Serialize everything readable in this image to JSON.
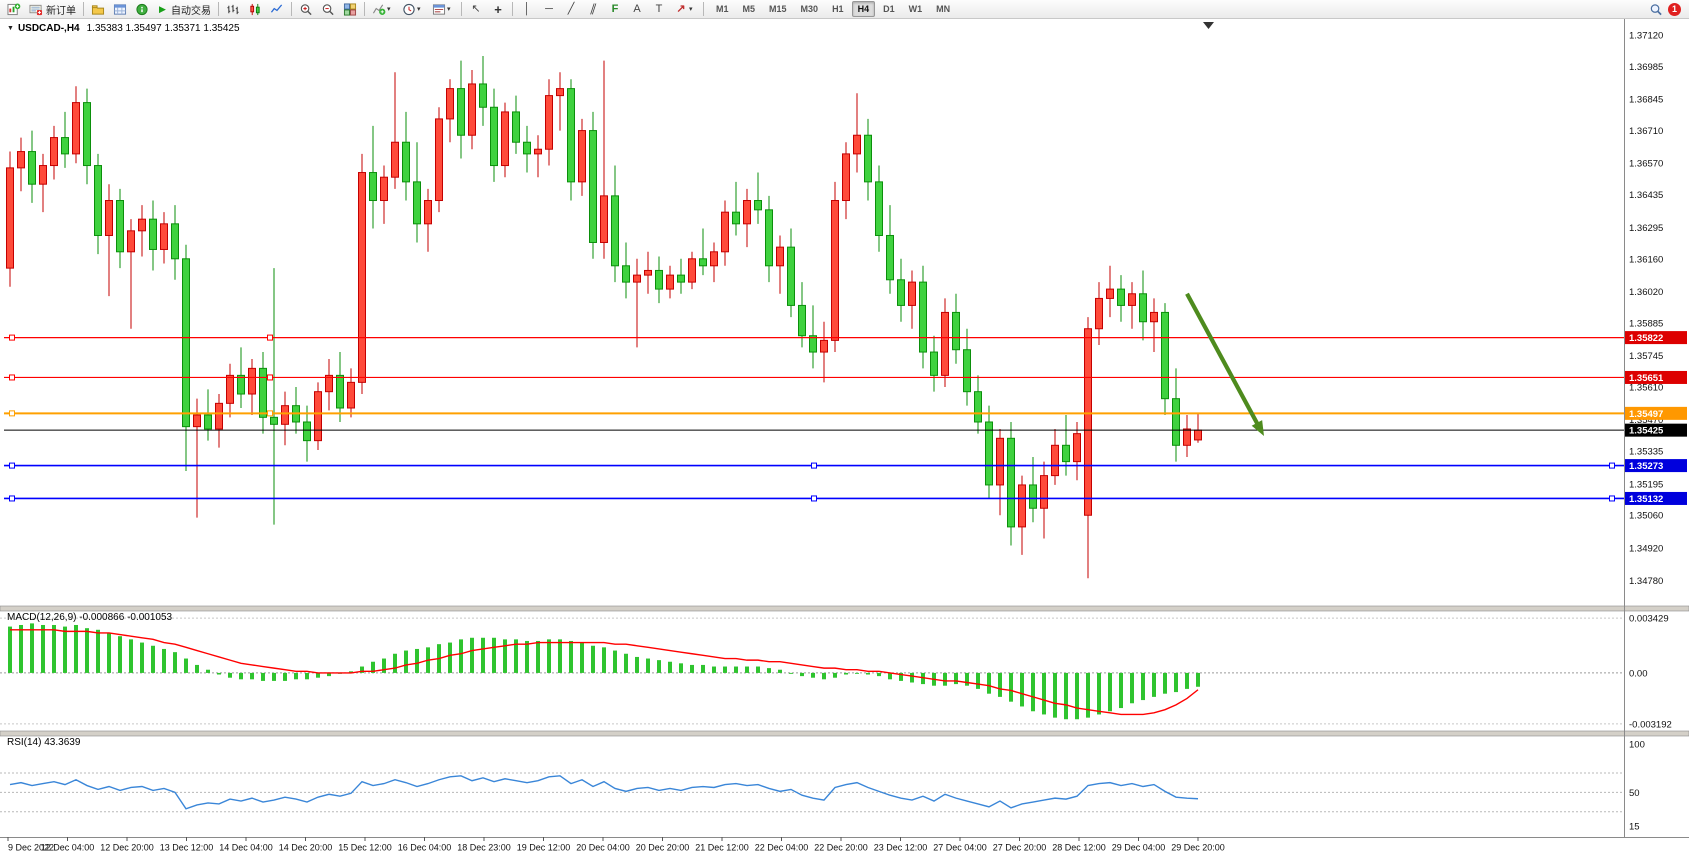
{
  "toolbar": {
    "new_order_label": "新订单",
    "auto_trading_label": "自动交易",
    "timeframes": [
      "M1",
      "M5",
      "M15",
      "M30",
      "H1",
      "H4",
      "D1",
      "W1",
      "MN"
    ],
    "active_timeframe": "H4",
    "notification_count": "1"
  },
  "icons": {
    "collapse": "▼",
    "play": "▶",
    "dropdown": "▾",
    "cursor": "↖",
    "crosshair": "+",
    "vertical_line": "│",
    "horizontal_line": "─",
    "trendline": "╱",
    "channel": "∥",
    "fibonacci": "F",
    "text_tool": "A",
    "label_tool": "T",
    "arrow_tool": "↗"
  },
  "chart": {
    "title": "USDCAD-,H4",
    "ohlc": "1.35383 1.35497 1.35371 1.35425"
  },
  "indicators": {
    "macd_name": "MACD(12,26,9)",
    "macd_values": "-0.000866 -0.001053",
    "rsi_name": "RSI(14)",
    "rsi_value": "43.3639"
  },
  "chart_data": {
    "type": "candlestick",
    "symbol": "USDCAD",
    "period": "H4",
    "ohlc_header": {
      "open": "1.35383",
      "high": "1.35497",
      "low": "1.35371",
      "close": "1.35425"
    },
    "colors": {
      "up_fill": "#ff4a3a",
      "up_stroke": "#c40000",
      "down_fill": "#3fd23f",
      "down_stroke": "#0b8f0b",
      "macd_bar": "#2fc42f",
      "macd_signal": "#ff0000",
      "rsi_line": "#3a86d8",
      "background": "#ffffff"
    },
    "price_axis": [
      "1.37120",
      "1.36985",
      "1.36845",
      "1.36710",
      "1.36570",
      "1.36435",
      "1.36295",
      "1.36160",
      "1.36020",
      "1.35885",
      "1.35745",
      "1.35610",
      "1.35470",
      "1.35335",
      "1.35195",
      "1.35060",
      "1.34920",
      "1.34780"
    ],
    "time_axis": [
      "9 Dec 2022",
      "12 Dec 04:00",
      "12 Dec 20:00",
      "13 Dec 12:00",
      "14 Dec 04:00",
      "14 Dec 20:00",
      "15 Dec 12:00",
      "16 Dec 04:00",
      "18 Dec 23:00",
      "19 Dec 12:00",
      "20 Dec 04:00",
      "20 Dec 20:00",
      "21 Dec 12:00",
      "22 Dec 04:00",
      "22 Dec 20:00",
      "23 Dec 12:00",
      "27 Dec 04:00",
      "27 Dec 20:00",
      "28 Dec 12:00",
      "29 Dec 04:00",
      "29 Dec 20:00"
    ],
    "candles": [
      [
        1.3612,
        1.3662,
        1.3604,
        1.3655
      ],
      [
        1.3655,
        1.3668,
        1.3645,
        1.3662
      ],
      [
        1.3662,
        1.3671,
        1.364,
        1.3648
      ],
      [
        1.3648,
        1.3661,
        1.3636,
        1.3656
      ],
      [
        1.3656,
        1.3673,
        1.365,
        1.3668
      ],
      [
        1.3668,
        1.3679,
        1.3655,
        1.3661
      ],
      [
        1.3661,
        1.369,
        1.3657,
        1.3683
      ],
      [
        1.3683,
        1.3689,
        1.3648,
        1.3656
      ],
      [
        1.3656,
        1.3661,
        1.3618,
        1.3626
      ],
      [
        1.3626,
        1.3648,
        1.36,
        1.3641
      ],
      [
        1.3641,
        1.3646,
        1.3612,
        1.3619
      ],
      [
        1.3619,
        1.3633,
        1.3586,
        1.3628
      ],
      [
        1.3628,
        1.3639,
        1.3617,
        1.3633
      ],
      [
        1.3633,
        1.3641,
        1.3611,
        1.362
      ],
      [
        1.362,
        1.3636,
        1.3614,
        1.3631
      ],
      [
        1.3631,
        1.3639,
        1.3607,
        1.3616
      ],
      [
        1.3616,
        1.3622,
        1.3525,
        1.3544
      ],
      [
        1.3544,
        1.3556,
        1.3505,
        1.3549
      ],
      [
        1.3549,
        1.356,
        1.3538,
        1.3543
      ],
      [
        1.3543,
        1.3558,
        1.3535,
        1.3554
      ],
      [
        1.3554,
        1.3571,
        1.3548,
        1.3566
      ],
      [
        1.3566,
        1.3578,
        1.3552,
        1.3558
      ],
      [
        1.3558,
        1.3573,
        1.3549,
        1.3569
      ],
      [
        1.3569,
        1.3576,
        1.3541,
        1.3548
      ],
      [
        1.3548,
        1.3612,
        1.3502,
        1.3545
      ],
      [
        1.3545,
        1.3559,
        1.3536,
        1.3553
      ],
      [
        1.3553,
        1.3561,
        1.3541,
        1.3546
      ],
      [
        1.3546,
        1.3553,
        1.3529,
        1.3538
      ],
      [
        1.3538,
        1.3563,
        1.3534,
        1.3559
      ],
      [
        1.3559,
        1.3573,
        1.3551,
        1.3566
      ],
      [
        1.3566,
        1.3576,
        1.3546,
        1.3552
      ],
      [
        1.3552,
        1.3569,
        1.3548,
        1.3563
      ],
      [
        1.3563,
        1.3661,
        1.3558,
        1.3653
      ],
      [
        1.3653,
        1.3673,
        1.3629,
        1.3641
      ],
      [
        1.3641,
        1.3656,
        1.3631,
        1.3651
      ],
      [
        1.3651,
        1.3696,
        1.3646,
        1.3666
      ],
      [
        1.3666,
        1.3679,
        1.3641,
        1.3649
      ],
      [
        1.3649,
        1.3666,
        1.3623,
        1.3631
      ],
      [
        1.3631,
        1.3646,
        1.3619,
        1.3641
      ],
      [
        1.3641,
        1.3681,
        1.3636,
        1.3676
      ],
      [
        1.3676,
        1.3693,
        1.3666,
        1.3689
      ],
      [
        1.3689,
        1.3701,
        1.3659,
        1.3669
      ],
      [
        1.3669,
        1.3697,
        1.3663,
        1.3691
      ],
      [
        1.3691,
        1.3703,
        1.3673,
        1.3681
      ],
      [
        1.3681,
        1.3689,
        1.3649,
        1.3656
      ],
      [
        1.3656,
        1.3683,
        1.3651,
        1.3679
      ],
      [
        1.3679,
        1.3686,
        1.3661,
        1.3666
      ],
      [
        1.3666,
        1.3673,
        1.3653,
        1.3661
      ],
      [
        1.3661,
        1.3669,
        1.3651,
        1.3663
      ],
      [
        1.3663,
        1.3693,
        1.3656,
        1.3686
      ],
      [
        1.3686,
        1.3696,
        1.3671,
        1.3689
      ],
      [
        1.3689,
        1.3693,
        1.3641,
        1.3649
      ],
      [
        1.3649,
        1.3676,
        1.3643,
        1.3671
      ],
      [
        1.3671,
        1.3679,
        1.3616,
        1.3623
      ],
      [
        1.3623,
        1.3701,
        1.3616,
        1.3643
      ],
      [
        1.3643,
        1.3656,
        1.3606,
        1.3613
      ],
      [
        1.3613,
        1.3623,
        1.3599,
        1.3606
      ],
      [
        1.3606,
        1.3616,
        1.3578,
        1.3609
      ],
      [
        1.3609,
        1.3619,
        1.3601,
        1.3611
      ],
      [
        1.3611,
        1.3617,
        1.3597,
        1.3603
      ],
      [
        1.3603,
        1.3613,
        1.3599,
        1.3609
      ],
      [
        1.3609,
        1.3616,
        1.3601,
        1.3606
      ],
      [
        1.3606,
        1.3619,
        1.3603,
        1.3616
      ],
      [
        1.3616,
        1.3629,
        1.3609,
        1.3613
      ],
      [
        1.3613,
        1.3623,
        1.3606,
        1.3619
      ],
      [
        1.3619,
        1.3641,
        1.3613,
        1.3636
      ],
      [
        1.3636,
        1.3649,
        1.3626,
        1.3631
      ],
      [
        1.3631,
        1.3646,
        1.3621,
        1.3641
      ],
      [
        1.3641,
        1.3653,
        1.3631,
        1.3637
      ],
      [
        1.3637,
        1.3643,
        1.3606,
        1.3613
      ],
      [
        1.3613,
        1.3626,
        1.3601,
        1.3621
      ],
      [
        1.3621,
        1.3629,
        1.3591,
        1.3596
      ],
      [
        1.3596,
        1.3606,
        1.3578,
        1.3583
      ],
      [
        1.3583,
        1.3596,
        1.3569,
        1.3576
      ],
      [
        1.3576,
        1.3589,
        1.3563,
        1.3581
      ],
      [
        1.3581,
        1.3649,
        1.3576,
        1.3641
      ],
      [
        1.3641,
        1.3666,
        1.3633,
        1.3661
      ],
      [
        1.3661,
        1.3687,
        1.3653,
        1.3669
      ],
      [
        1.3669,
        1.3676,
        1.3641,
        1.3649
      ],
      [
        1.3649,
        1.3656,
        1.3619,
        1.3626
      ],
      [
        1.3626,
        1.3639,
        1.3601,
        1.3607
      ],
      [
        1.3607,
        1.3616,
        1.3589,
        1.3596
      ],
      [
        1.3596,
        1.3611,
        1.3586,
        1.3606
      ],
      [
        1.3606,
        1.3613,
        1.3569,
        1.3576
      ],
      [
        1.3576,
        1.3583,
        1.3559,
        1.3566
      ],
      [
        1.3566,
        1.3599,
        1.3561,
        1.3593
      ],
      [
        1.3593,
        1.3601,
        1.3571,
        1.3577
      ],
      [
        1.3577,
        1.3586,
        1.3553,
        1.3559
      ],
      [
        1.3559,
        1.3566,
        1.3541,
        1.3546
      ],
      [
        1.3546,
        1.3553,
        1.3513,
        1.3519
      ],
      [
        1.3519,
        1.3543,
        1.3506,
        1.3539
      ],
      [
        1.3539,
        1.3546,
        1.3493,
        1.3501
      ],
      [
        1.3501,
        1.3523,
        1.3489,
        1.3519
      ],
      [
        1.3519,
        1.3531,
        1.3503,
        1.3509
      ],
      [
        1.3509,
        1.3529,
        1.3496,
        1.3523
      ],
      [
        1.3523,
        1.3543,
        1.3519,
        1.3536
      ],
      [
        1.3536,
        1.3549,
        1.3523,
        1.3529
      ],
      [
        1.3529,
        1.3546,
        1.3521,
        1.3541
      ],
      [
        1.3506,
        1.3591,
        1.3479,
        1.3586
      ],
      [
        1.3586,
        1.3606,
        1.3579,
        1.3599
      ],
      [
        1.3599,
        1.3613,
        1.3591,
        1.3603
      ],
      [
        1.3603,
        1.3609,
        1.3589,
        1.3596
      ],
      [
        1.3596,
        1.3606,
        1.3586,
        1.3601
      ],
      [
        1.3601,
        1.3611,
        1.3581,
        1.3589
      ],
      [
        1.3589,
        1.3599,
        1.3576,
        1.3593
      ],
      [
        1.3593,
        1.3597,
        1.3549,
        1.3556
      ],
      [
        1.3556,
        1.3569,
        1.3529,
        1.3536
      ],
      [
        1.3536,
        1.3549,
        1.3531,
        1.3543
      ],
      [
        1.35383,
        1.35497,
        1.35371,
        1.35425
      ]
    ],
    "hlines": [
      {
        "value": "1.35822",
        "color": "#ff0000",
        "badge": "#dd0000",
        "width": 1.2,
        "handles": [
          12,
          270
        ]
      },
      {
        "value": "1.35651",
        "color": "#ff0000",
        "badge": "#dd0000",
        "width": 1.2,
        "handles": [
          12,
          270
        ]
      },
      {
        "value": "1.35497",
        "color": "#ffa000",
        "badge": "#ff9800",
        "width": 2,
        "handles": [
          12,
          270
        ]
      },
      {
        "value": "1.35425",
        "color": "#000000",
        "badge": "#000000",
        "width": 1,
        "handles": []
      },
      {
        "value": "1.35273",
        "color": "#0000ff",
        "badge": "#0000dd",
        "width": 1.6,
        "handles": [
          12,
          814,
          1612
        ]
      },
      {
        "value": "1.35132",
        "color": "#0000ff",
        "badge": "#0000dd",
        "width": 1.6,
        "handles": [
          12,
          814,
          1612
        ]
      }
    ],
    "arrow": {
      "from_index": 107,
      "from_price": 1.3601,
      "to_index": 114,
      "to_price": 1.354,
      "color": "#4e8b1e"
    },
    "macd": {
      "axis": [
        "0.003429",
        "0.00",
        "-0.003192"
      ],
      "histogram": [
        0.0029,
        0.003,
        0.0031,
        0.003,
        0.003,
        0.0029,
        0.003,
        0.0028,
        0.0027,
        0.0025,
        0.0023,
        0.0021,
        0.0019,
        0.0017,
        0.0015,
        0.0013,
        0.0009,
        0.0005,
        0.0002,
        -0.0001,
        -0.0003,
        -0.0004,
        -0.0004,
        -0.0005,
        -0.0005,
        -0.0005,
        -0.0004,
        -0.0004,
        -0.0003,
        -0.0002,
        0.0,
        0.0001,
        0.0004,
        0.0007,
        0.0009,
        0.0012,
        0.0014,
        0.0015,
        0.0016,
        0.0018,
        0.0019,
        0.0021,
        0.0022,
        0.0022,
        0.0022,
        0.0021,
        0.0021,
        0.002,
        0.002,
        0.0021,
        0.0021,
        0.002,
        0.0019,
        0.0017,
        0.0016,
        0.0014,
        0.0012,
        0.001,
        0.0009,
        0.0008,
        0.0007,
        0.0006,
        0.0005,
        0.0005,
        0.0004,
        0.0004,
        0.0004,
        0.0004,
        0.0004,
        0.0003,
        0.0002,
        0.0,
        -0.0002,
        -0.0003,
        -0.0004,
        -0.0003,
        -0.0001,
        0.0,
        -0.0001,
        -0.0002,
        -0.0004,
        -0.0005,
        -0.0006,
        -0.0007,
        -0.0008,
        -0.0008,
        -0.0007,
        -0.0008,
        -0.001,
        -0.0013,
        -0.0015,
        -0.0018,
        -0.0021,
        -0.0024,
        -0.0026,
        -0.0028,
        -0.0029,
        -0.0029,
        -0.0028,
        -0.0026,
        -0.0024,
        -0.0022,
        -0.0019,
        -0.0017,
        -0.0015,
        -0.0013,
        -0.0012,
        -0.001,
        -0.000866
      ],
      "signal": [
        0.0027,
        0.0027,
        0.0027,
        0.0027,
        0.0027,
        0.0026,
        0.0026,
        0.0026,
        0.0025,
        0.0025,
        0.0024,
        0.0023,
        0.0022,
        0.0021,
        0.0019,
        0.0018,
        0.0016,
        0.0014,
        0.0012,
        0.001,
        0.0008,
        0.0006,
        0.0005,
        0.0004,
        0.0003,
        0.0002,
        0.0001,
        0.0001,
        0.0,
        0.0,
        0.0,
        0.0,
        0.0001,
        0.0001,
        0.0002,
        0.0003,
        0.0005,
        0.0006,
        0.0008,
        0.0009,
        0.0011,
        0.0012,
        0.0014,
        0.0015,
        0.0016,
        0.0017,
        0.0018,
        0.0018,
        0.0019,
        0.0019,
        0.0019,
        0.0019,
        0.0019,
        0.0019,
        0.0019,
        0.0018,
        0.0018,
        0.0017,
        0.0016,
        0.0015,
        0.0014,
        0.0013,
        0.0012,
        0.0011,
        0.001,
        0.0009,
        0.0009,
        0.0008,
        0.0008,
        0.0007,
        0.0007,
        0.0006,
        0.0005,
        0.0004,
        0.0003,
        0.0003,
        0.0002,
        0.0002,
        0.0001,
        0.0001,
        0.0,
        -0.0001,
        -0.0002,
        -0.0003,
        -0.0004,
        -0.0005,
        -0.0005,
        -0.0006,
        -0.0007,
        -0.0008,
        -0.001,
        -0.0011,
        -0.0013,
        -0.0015,
        -0.0017,
        -0.0019,
        -0.002,
        -0.0022,
        -0.0023,
        -0.0024,
        -0.0025,
        -0.0026,
        -0.0026,
        -0.0026,
        -0.0025,
        -0.0023,
        -0.002,
        -0.0016,
        -0.001053
      ]
    },
    "rsi": {
      "axis": [
        "100",
        "50",
        "15"
      ],
      "levels": [
        70,
        50,
        30
      ],
      "values": [
        58,
        60,
        57,
        59,
        61,
        58,
        63,
        57,
        53,
        56,
        52,
        55,
        56,
        52,
        54,
        50,
        33,
        37,
        39,
        38,
        43,
        41,
        44,
        40,
        42,
        45,
        43,
        40,
        45,
        48,
        46,
        49,
        61,
        57,
        59,
        63,
        60,
        56,
        59,
        63,
        66,
        67,
        62,
        65,
        61,
        64,
        62,
        60,
        62,
        66,
        67,
        59,
        63,
        56,
        61,
        54,
        51,
        54,
        55,
        52,
        54,
        52,
        55,
        56,
        55,
        58,
        59,
        57,
        58,
        54,
        51,
        53,
        47,
        44,
        42,
        55,
        58,
        60,
        55,
        51,
        47,
        44,
        42,
        46,
        41,
        48,
        44,
        41,
        38,
        35,
        41,
        34,
        38,
        40,
        42,
        44,
        43,
        46,
        57,
        59,
        60,
        57,
        59,
        56,
        58,
        51,
        45,
        44,
        43.3639
      ]
    }
  }
}
